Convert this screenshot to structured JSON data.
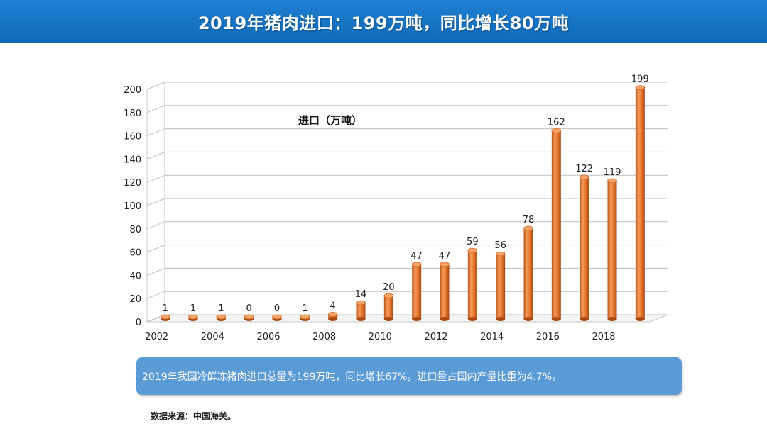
{
  "header": {
    "title": "2019年猪肉进口：199万吨，同比增长80万吨"
  },
  "chart_data": {
    "type": "bar",
    "title": "进口（万吨）",
    "categories": [
      "2002",
      "2003",
      "2004",
      "2005",
      "2006",
      "2007",
      "2008",
      "2009",
      "2010",
      "2011",
      "2012",
      "2013",
      "2014",
      "2015",
      "2016",
      "2017",
      "2018",
      "2019"
    ],
    "values": [
      1,
      1,
      1,
      0,
      0,
      1,
      4,
      14,
      20,
      47,
      47,
      59,
      56,
      78,
      162,
      122,
      119,
      199
    ],
    "data_labels": [
      "1",
      "1",
      "1",
      "0",
      "0",
      "1",
      "4",
      "14",
      "20",
      "47",
      "47",
      "59",
      "56",
      "78",
      "162",
      "122",
      "119",
      "199"
    ],
    "x_tick_labels": [
      "2002",
      "2004",
      "2006",
      "2008",
      "2010",
      "2012",
      "2014",
      "2016",
      "2018"
    ],
    "y_ticks": [
      0,
      20,
      40,
      60,
      80,
      100,
      120,
      140,
      160,
      180,
      200
    ],
    "ylim": [
      0,
      200
    ],
    "grid": true,
    "bar_color": "#ed7d31",
    "style": "3d-cylinder"
  },
  "summary": {
    "text": "2019年我国冷鲜冻猪肉进口总量为199万吨，同比增长67%。进口量占国内产量比重为4.7%。"
  },
  "source": {
    "text": "数据来源：中国海关。"
  }
}
